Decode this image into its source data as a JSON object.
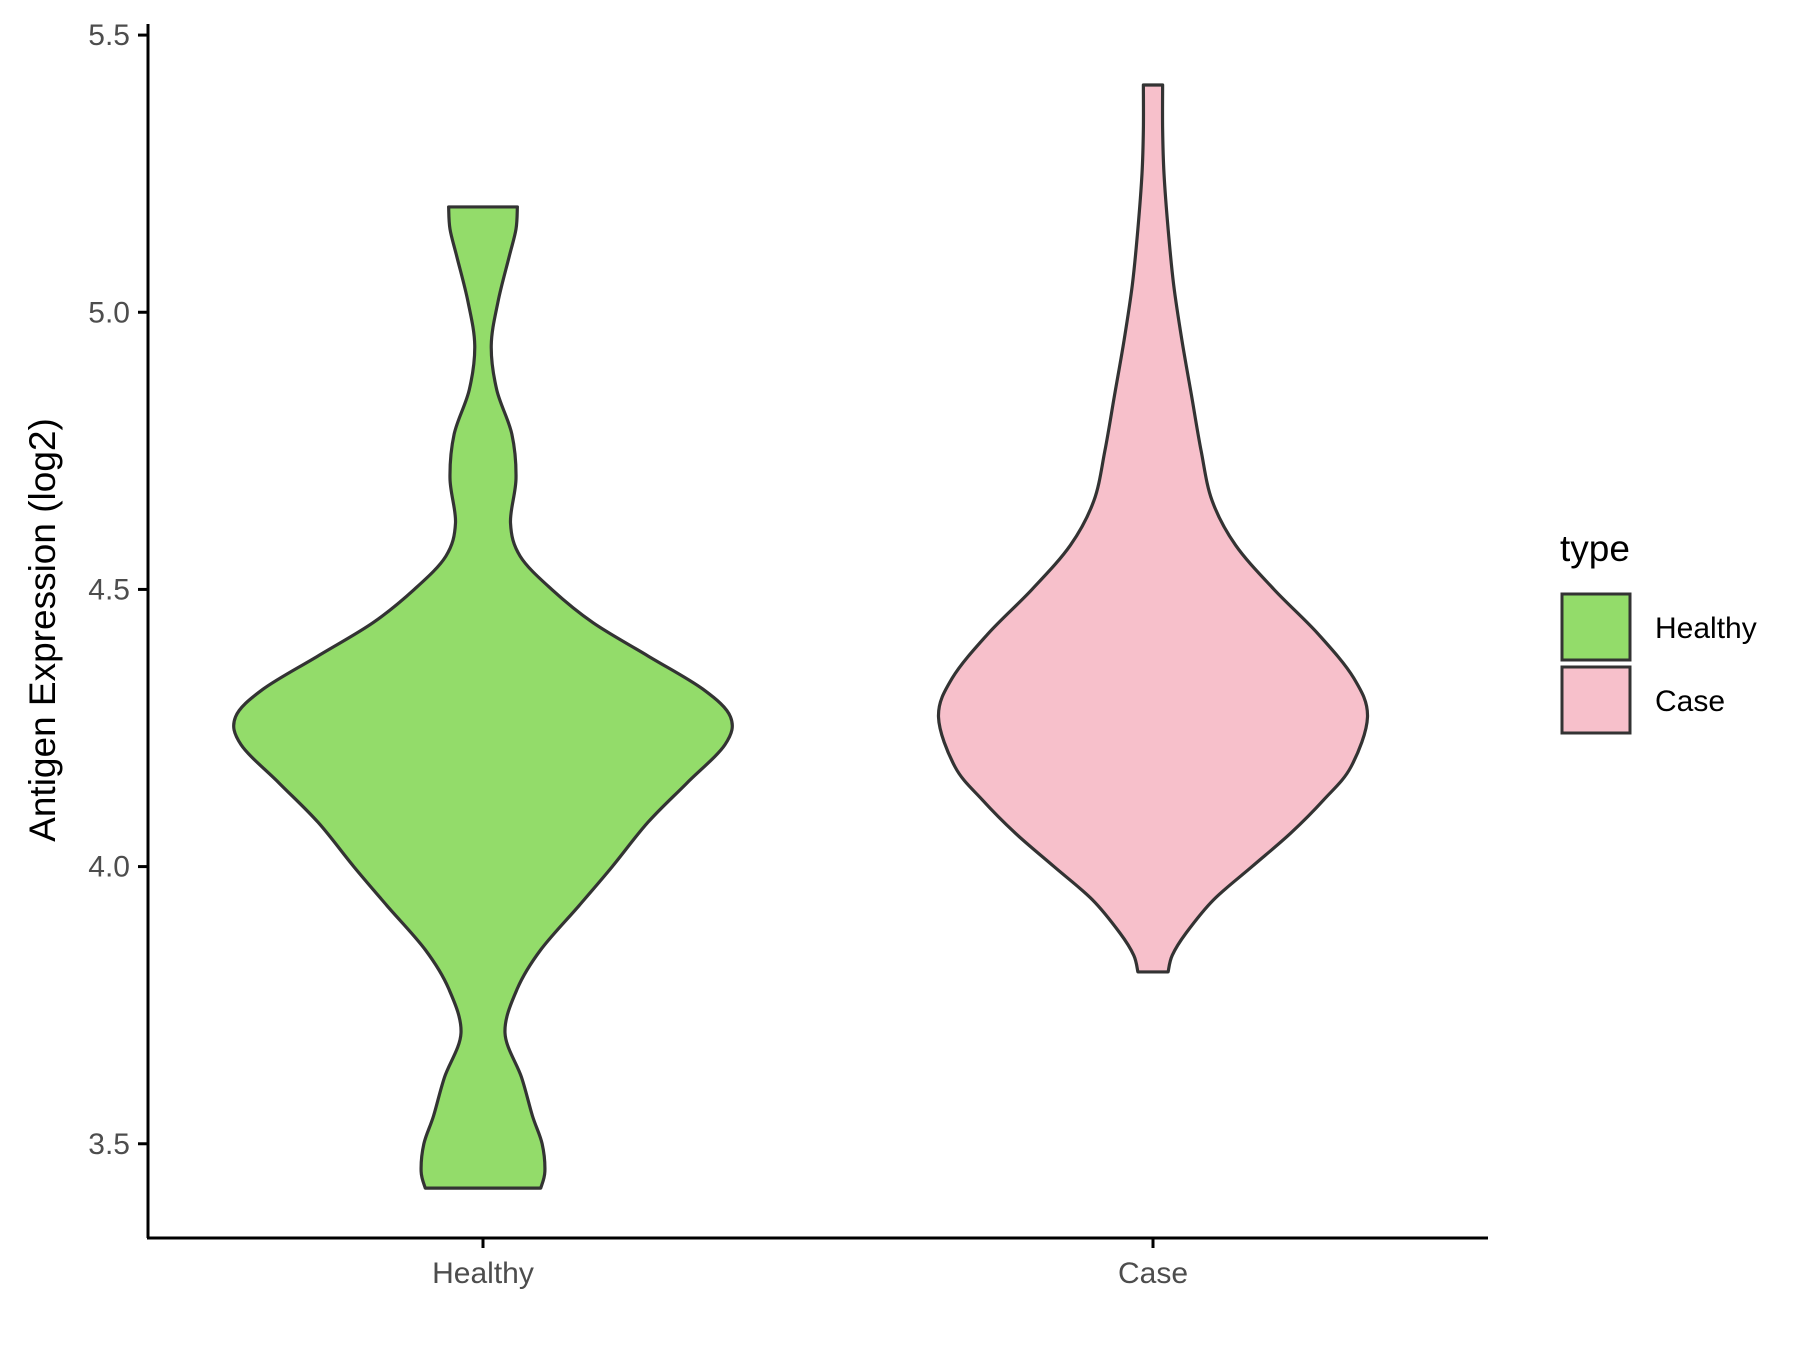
{
  "chart_data": {
    "type": "violin",
    "xlabel": "",
    "ylabel": "Antigen Expression (log2)",
    "categories": [
      "Healthy",
      "Case"
    ],
    "ylim": [
      3.33,
      5.52
    ],
    "yticks": [
      "3.5",
      "4.0",
      "4.5",
      "5.0",
      "5.5"
    ],
    "grid": false,
    "legend": {
      "title": "type",
      "position": "right",
      "items": [
        {
          "label": "Healthy",
          "color": "#93DC6A"
        },
        {
          "label": "Case",
          "color": "#F7C0CB"
        }
      ]
    },
    "series": [
      {
        "name": "Healthy",
        "color": "#93DC6A",
        "min": 3.42,
        "max": 5.19,
        "density_profile": [
          [
            3.42,
            0.21
          ],
          [
            3.45,
            0.225
          ],
          [
            3.5,
            0.215
          ],
          [
            3.55,
            0.18
          ],
          [
            3.62,
            0.14
          ],
          [
            3.7,
            0.08
          ],
          [
            3.78,
            0.125
          ],
          [
            3.85,
            0.21
          ],
          [
            3.93,
            0.35
          ],
          [
            4.0,
            0.47
          ],
          [
            4.08,
            0.6
          ],
          [
            4.15,
            0.74
          ],
          [
            4.22,
            0.88
          ],
          [
            4.27,
            0.9
          ],
          [
            4.32,
            0.8
          ],
          [
            4.38,
            0.6
          ],
          [
            4.44,
            0.4
          ],
          [
            4.5,
            0.25
          ],
          [
            4.56,
            0.135
          ],
          [
            4.62,
            0.1
          ],
          [
            4.7,
            0.12
          ],
          [
            4.78,
            0.105
          ],
          [
            4.86,
            0.05
          ],
          [
            4.94,
            0.03
          ],
          [
            5.02,
            0.055
          ],
          [
            5.1,
            0.095
          ],
          [
            5.15,
            0.12
          ],
          [
            5.19,
            0.125
          ]
        ]
      },
      {
        "name": "Case",
        "color": "#F7C0CB",
        "min": 3.81,
        "max": 5.41,
        "density_profile": [
          [
            3.81,
            0.055
          ],
          [
            3.84,
            0.07
          ],
          [
            3.88,
            0.12
          ],
          [
            3.94,
            0.22
          ],
          [
            4.0,
            0.36
          ],
          [
            4.06,
            0.5
          ],
          [
            4.12,
            0.62
          ],
          [
            4.18,
            0.72
          ],
          [
            4.27,
            0.78
          ],
          [
            4.34,
            0.73
          ],
          [
            4.42,
            0.6
          ],
          [
            4.5,
            0.44
          ],
          [
            4.58,
            0.3
          ],
          [
            4.66,
            0.215
          ],
          [
            4.75,
            0.175
          ],
          [
            4.85,
            0.14
          ],
          [
            4.95,
            0.105
          ],
          [
            5.05,
            0.075
          ],
          [
            5.15,
            0.055
          ],
          [
            5.25,
            0.04
          ],
          [
            5.33,
            0.035
          ],
          [
            5.41,
            0.035
          ]
        ]
      }
    ]
  }
}
